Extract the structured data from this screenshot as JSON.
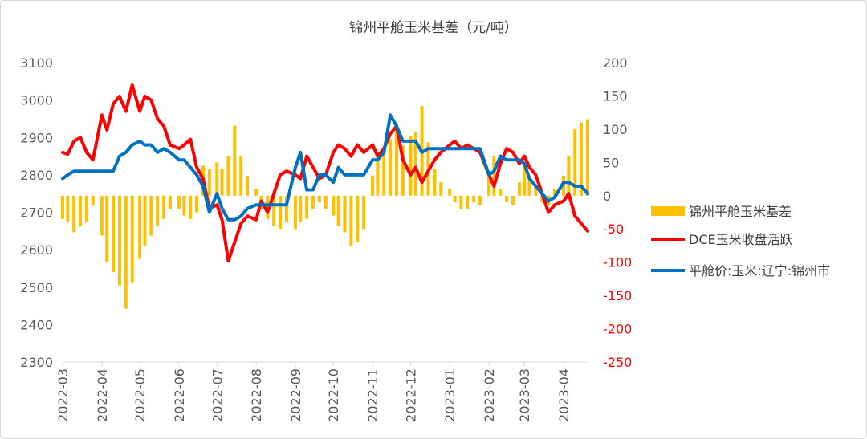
{
  "chart_data": {
    "type": "bar+line",
    "title": "锦州平舱玉米基差（元/吨）",
    "x_ticks": [
      "2022-03",
      "2022-04",
      "2022-05",
      "2022-06",
      "2022-07",
      "2022-08",
      "2022-09",
      "2022-10",
      "2022-11",
      "2022-12",
      "2023-01",
      "2023-02",
      "2023-03",
      "2023-04"
    ],
    "x_range": [
      "2022-03-01",
      "2023-04-20"
    ],
    "left_axis": {
      "ylim": [
        2300,
        3100
      ],
      "ticks": [
        "3100",
        "3000",
        "2900",
        "2800",
        "2700",
        "2600",
        "2500",
        "2400",
        "2300"
      ]
    },
    "right_axis": {
      "ylim": [
        -250,
        200
      ],
      "ticks": [
        "200",
        "150",
        "100",
        "50",
        "0",
        "-50",
        "-100",
        "-150",
        "-200",
        "-250"
      ],
      "tick_color": "#ff0000"
    },
    "grid": false,
    "legend_position": "right",
    "series": [
      {
        "name": "锦州平舱玉米基差",
        "kind": "bar",
        "axis": "right",
        "color": "#ffc000",
        "points": [
          [
            "2022-03-01",
            -35
          ],
          [
            "2022-03-05",
            -40
          ],
          [
            "2022-03-10",
            -55
          ],
          [
            "2022-03-15",
            -45
          ],
          [
            "2022-03-20",
            -40
          ],
          [
            "2022-03-25",
            -15
          ],
          [
            "2022-04-01",
            -60
          ],
          [
            "2022-04-05",
            -100
          ],
          [
            "2022-04-10",
            -115
          ],
          [
            "2022-04-15",
            -135
          ],
          [
            "2022-04-20",
            -170
          ],
          [
            "2022-04-25",
            -130
          ],
          [
            "2022-05-01",
            -95
          ],
          [
            "2022-05-05",
            -75
          ],
          [
            "2022-05-10",
            -60
          ],
          [
            "2022-05-15",
            -45
          ],
          [
            "2022-05-20",
            -35
          ],
          [
            "2022-05-25",
            -20
          ],
          [
            "2022-06-01",
            -20
          ],
          [
            "2022-06-05",
            -30
          ],
          [
            "2022-06-10",
            -35
          ],
          [
            "2022-06-15",
            -25
          ],
          [
            "2022-06-20",
            45
          ],
          [
            "2022-06-25",
            40
          ],
          [
            "2022-07-01",
            50
          ],
          [
            "2022-07-05",
            40
          ],
          [
            "2022-07-10",
            60
          ],
          [
            "2022-07-15",
            105
          ],
          [
            "2022-07-20",
            60
          ],
          [
            "2022-07-25",
            30
          ],
          [
            "2022-08-01",
            10
          ],
          [
            "2022-08-05",
            -20
          ],
          [
            "2022-08-10",
            -35
          ],
          [
            "2022-08-15",
            -45
          ],
          [
            "2022-08-20",
            -50
          ],
          [
            "2022-08-25",
            -40
          ],
          [
            "2022-09-01",
            -50
          ],
          [
            "2022-09-05",
            -40
          ],
          [
            "2022-09-10",
            -35
          ],
          [
            "2022-09-15",
            -20
          ],
          [
            "2022-09-20",
            -10
          ],
          [
            "2022-09-25",
            -20
          ],
          [
            "2022-10-01",
            -30
          ],
          [
            "2022-10-05",
            -45
          ],
          [
            "2022-10-10",
            -55
          ],
          [
            "2022-10-15",
            -75
          ],
          [
            "2022-10-20",
            -70
          ],
          [
            "2022-10-25",
            -50
          ],
          [
            "2022-11-01",
            30
          ],
          [
            "2022-11-05",
            60
          ],
          [
            "2022-11-10",
            70
          ],
          [
            "2022-11-15",
            85
          ],
          [
            "2022-11-20",
            110
          ],
          [
            "2022-11-25",
            75
          ],
          [
            "2022-12-01",
            90
          ],
          [
            "2022-12-05",
            95
          ],
          [
            "2022-12-10",
            135
          ],
          [
            "2022-12-15",
            80
          ],
          [
            "2022-12-20",
            40
          ],
          [
            "2022-12-25",
            20
          ],
          [
            "2023-01-01",
            10
          ],
          [
            "2023-01-05",
            -10
          ],
          [
            "2023-01-10",
            -20
          ],
          [
            "2023-01-15",
            -20
          ],
          [
            "2023-01-20",
            -10
          ],
          [
            "2023-01-25",
            -15
          ],
          [
            "2023-02-01",
            30
          ],
          [
            "2023-02-05",
            60
          ],
          [
            "2023-02-10",
            10
          ],
          [
            "2023-02-15",
            -10
          ],
          [
            "2023-02-20",
            -15
          ],
          [
            "2023-02-25",
            20
          ],
          [
            "2023-03-01",
            50
          ],
          [
            "2023-03-05",
            25
          ],
          [
            "2023-03-10",
            15
          ],
          [
            "2023-03-15",
            -10
          ],
          [
            "2023-03-20",
            -15
          ],
          [
            "2023-03-25",
            10
          ],
          [
            "2023-04-01",
            30
          ],
          [
            "2023-04-05",
            60
          ],
          [
            "2023-04-10",
            100
          ],
          [
            "2023-04-15",
            110
          ],
          [
            "2023-04-20",
            115
          ]
        ]
      },
      {
        "name": "DCE玉米收盘活跃",
        "kind": "line",
        "axis": "left",
        "color": "#ff0000",
        "points": [
          [
            "2022-03-01",
            2860
          ],
          [
            "2022-03-05",
            2855
          ],
          [
            "2022-03-10",
            2890
          ],
          [
            "2022-03-15",
            2900
          ],
          [
            "2022-03-20",
            2860
          ],
          [
            "2022-03-25",
            2840
          ],
          [
            "2022-04-01",
            2960
          ],
          [
            "2022-04-05",
            2920
          ],
          [
            "2022-04-10",
            2990
          ],
          [
            "2022-04-15",
            3010
          ],
          [
            "2022-04-20",
            2970
          ],
          [
            "2022-04-25",
            3040
          ],
          [
            "2022-05-01",
            2970
          ],
          [
            "2022-05-05",
            3010
          ],
          [
            "2022-05-10",
            3000
          ],
          [
            "2022-05-15",
            2950
          ],
          [
            "2022-05-20",
            2930
          ],
          [
            "2022-05-25",
            2880
          ],
          [
            "2022-06-01",
            2870
          ],
          [
            "2022-06-05",
            2880
          ],
          [
            "2022-06-10",
            2895
          ],
          [
            "2022-06-15",
            2820
          ],
          [
            "2022-06-20",
            2790
          ],
          [
            "2022-06-25",
            2710
          ],
          [
            "2022-07-01",
            2720
          ],
          [
            "2022-07-05",
            2680
          ],
          [
            "2022-07-10",
            2570
          ],
          [
            "2022-07-15",
            2620
          ],
          [
            "2022-07-20",
            2670
          ],
          [
            "2022-07-25",
            2690
          ],
          [
            "2022-08-01",
            2680
          ],
          [
            "2022-08-05",
            2730
          ],
          [
            "2022-08-10",
            2700
          ],
          [
            "2022-08-15",
            2750
          ],
          [
            "2022-08-20",
            2800
          ],
          [
            "2022-08-25",
            2810
          ],
          [
            "2022-09-01",
            2800
          ],
          [
            "2022-09-05",
            2790
          ],
          [
            "2022-09-10",
            2850
          ],
          [
            "2022-09-15",
            2820
          ],
          [
            "2022-09-20",
            2790
          ],
          [
            "2022-09-25",
            2800
          ],
          [
            "2022-10-01",
            2860
          ],
          [
            "2022-10-05",
            2880
          ],
          [
            "2022-10-10",
            2870
          ],
          [
            "2022-10-15",
            2850
          ],
          [
            "2022-10-20",
            2880
          ],
          [
            "2022-10-25",
            2860
          ],
          [
            "2022-11-01",
            2880
          ],
          [
            "2022-11-05",
            2850
          ],
          [
            "2022-11-10",
            2870
          ],
          [
            "2022-11-15",
            2910
          ],
          [
            "2022-11-20",
            2930
          ],
          [
            "2022-11-25",
            2840
          ],
          [
            "2022-12-01",
            2800
          ],
          [
            "2022-12-05",
            2820
          ],
          [
            "2022-12-10",
            2780
          ],
          [
            "2022-12-15",
            2810
          ],
          [
            "2022-12-20",
            2840
          ],
          [
            "2022-12-25",
            2860
          ],
          [
            "2023-01-01",
            2880
          ],
          [
            "2023-01-05",
            2890
          ],
          [
            "2023-01-10",
            2870
          ],
          [
            "2023-01-15",
            2880
          ],
          [
            "2023-01-20",
            2870
          ],
          [
            "2023-01-25",
            2860
          ],
          [
            "2023-02-01",
            2800
          ],
          [
            "2023-02-05",
            2770
          ],
          [
            "2023-02-10",
            2830
          ],
          [
            "2023-02-15",
            2870
          ],
          [
            "2023-02-20",
            2860
          ],
          [
            "2023-02-25",
            2830
          ],
          [
            "2023-03-01",
            2850
          ],
          [
            "2023-03-05",
            2820
          ],
          [
            "2023-03-10",
            2800
          ],
          [
            "2023-03-15",
            2750
          ],
          [
            "2023-03-20",
            2700
          ],
          [
            "2023-03-25",
            2720
          ],
          [
            "2023-04-01",
            2730
          ],
          [
            "2023-04-05",
            2750
          ],
          [
            "2023-04-10",
            2690
          ],
          [
            "2023-04-15",
            2670
          ],
          [
            "2023-04-20",
            2650
          ]
        ]
      },
      {
        "name": "平舱价:玉米:辽宁:锦州市",
        "kind": "line",
        "axis": "left",
        "color": "#0070c0",
        "points": [
          [
            "2022-03-01",
            2790
          ],
          [
            "2022-03-05",
            2800
          ],
          [
            "2022-03-10",
            2810
          ],
          [
            "2022-03-15",
            2810
          ],
          [
            "2022-03-20",
            2810
          ],
          [
            "2022-03-25",
            2810
          ],
          [
            "2022-04-01",
            2810
          ],
          [
            "2022-04-10",
            2810
          ],
          [
            "2022-04-15",
            2850
          ],
          [
            "2022-04-20",
            2860
          ],
          [
            "2022-04-25",
            2880
          ],
          [
            "2022-05-01",
            2890
          ],
          [
            "2022-05-05",
            2880
          ],
          [
            "2022-05-10",
            2880
          ],
          [
            "2022-05-15",
            2860
          ],
          [
            "2022-05-20",
            2870
          ],
          [
            "2022-05-25",
            2860
          ],
          [
            "2022-06-01",
            2840
          ],
          [
            "2022-06-05",
            2840
          ],
          [
            "2022-06-10",
            2820
          ],
          [
            "2022-06-15",
            2800
          ],
          [
            "2022-06-20",
            2770
          ],
          [
            "2022-06-25",
            2700
          ],
          [
            "2022-07-01",
            2750
          ],
          [
            "2022-07-05",
            2710
          ],
          [
            "2022-07-10",
            2680
          ],
          [
            "2022-07-15",
            2680
          ],
          [
            "2022-07-20",
            2690
          ],
          [
            "2022-07-25",
            2710
          ],
          [
            "2022-08-01",
            2720
          ],
          [
            "2022-08-05",
            2720
          ],
          [
            "2022-08-10",
            2720
          ],
          [
            "2022-08-15",
            2720
          ],
          [
            "2022-08-20",
            2720
          ],
          [
            "2022-08-25",
            2720
          ],
          [
            "2022-09-01",
            2820
          ],
          [
            "2022-09-05",
            2860
          ],
          [
            "2022-09-10",
            2760
          ],
          [
            "2022-09-15",
            2760
          ],
          [
            "2022-09-20",
            2800
          ],
          [
            "2022-09-25",
            2800
          ],
          [
            "2022-10-01",
            2780
          ],
          [
            "2022-10-05",
            2820
          ],
          [
            "2022-10-10",
            2800
          ],
          [
            "2022-10-15",
            2800
          ],
          [
            "2022-10-20",
            2800
          ],
          [
            "2022-10-25",
            2800
          ],
          [
            "2022-11-01",
            2840
          ],
          [
            "2022-11-05",
            2840
          ],
          [
            "2022-11-10",
            2860
          ],
          [
            "2022-11-15",
            2960
          ],
          [
            "2022-11-20",
            2930
          ],
          [
            "2022-11-25",
            2890
          ],
          [
            "2022-12-01",
            2890
          ],
          [
            "2022-12-05",
            2890
          ],
          [
            "2022-12-10",
            2860
          ],
          [
            "2022-12-15",
            2870
          ],
          [
            "2022-12-20",
            2870
          ],
          [
            "2022-12-25",
            2870
          ],
          [
            "2023-01-01",
            2870
          ],
          [
            "2023-01-05",
            2870
          ],
          [
            "2023-01-10",
            2870
          ],
          [
            "2023-01-15",
            2870
          ],
          [
            "2023-01-20",
            2870
          ],
          [
            "2023-01-25",
            2870
          ],
          [
            "2023-02-01",
            2800
          ],
          [
            "2023-02-05",
            2810
          ],
          [
            "2023-02-10",
            2850
          ],
          [
            "2023-02-15",
            2840
          ],
          [
            "2023-02-20",
            2840
          ],
          [
            "2023-02-25",
            2840
          ],
          [
            "2023-03-01",
            2830
          ],
          [
            "2023-03-05",
            2790
          ],
          [
            "2023-03-10",
            2770
          ],
          [
            "2023-03-15",
            2750
          ],
          [
            "2023-03-20",
            2730
          ],
          [
            "2023-03-25",
            2740
          ],
          [
            "2023-04-01",
            2780
          ],
          [
            "2023-04-05",
            2780
          ],
          [
            "2023-04-10",
            2770
          ],
          [
            "2023-04-15",
            2770
          ],
          [
            "2023-04-20",
            2750
          ]
        ]
      }
    ]
  }
}
